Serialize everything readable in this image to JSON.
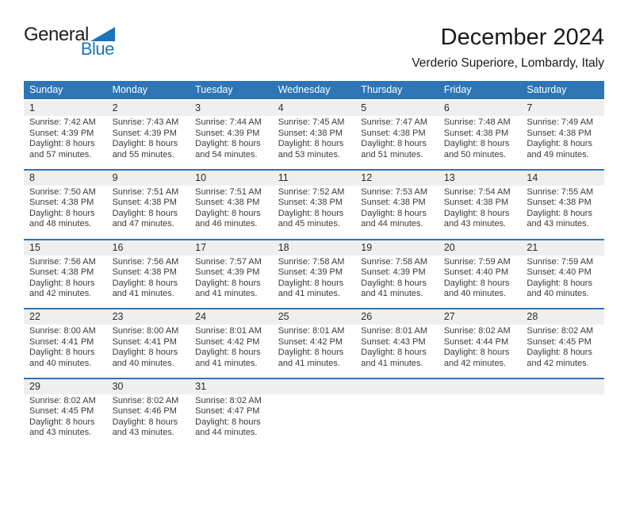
{
  "logo": {
    "general": "General",
    "blue": "Blue"
  },
  "header": {
    "title": "December 2024",
    "subtitle": "Verderio Superiore, Lombardy, Italy"
  },
  "colors": {
    "header_bg": "#2E75B5",
    "week_divider": "#2E75B5",
    "day_number_strip_bg": "#EFEFEF",
    "logo_blue": "#1B75BC",
    "header_text": "#FFFFFF"
  },
  "calendar": {
    "weekdays": [
      "Sunday",
      "Monday",
      "Tuesday",
      "Wednesday",
      "Thursday",
      "Friday",
      "Saturday"
    ],
    "weeks": [
      [
        {
          "day": "1",
          "lines": [
            "Sunrise: 7:42 AM",
            "Sunset: 4:39 PM",
            "Daylight: 8 hours",
            "and 57 minutes."
          ]
        },
        {
          "day": "2",
          "lines": [
            "Sunrise: 7:43 AM",
            "Sunset: 4:39 PM",
            "Daylight: 8 hours",
            "and 55 minutes."
          ]
        },
        {
          "day": "3",
          "lines": [
            "Sunrise: 7:44 AM",
            "Sunset: 4:39 PM",
            "Daylight: 8 hours",
            "and 54 minutes."
          ]
        },
        {
          "day": "4",
          "lines": [
            "Sunrise: 7:45 AM",
            "Sunset: 4:38 PM",
            "Daylight: 8 hours",
            "and 53 minutes."
          ]
        },
        {
          "day": "5",
          "lines": [
            "Sunrise: 7:47 AM",
            "Sunset: 4:38 PM",
            "Daylight: 8 hours",
            "and 51 minutes."
          ]
        },
        {
          "day": "6",
          "lines": [
            "Sunrise: 7:48 AM",
            "Sunset: 4:38 PM",
            "Daylight: 8 hours",
            "and 50 minutes."
          ]
        },
        {
          "day": "7",
          "lines": [
            "Sunrise: 7:49 AM",
            "Sunset: 4:38 PM",
            "Daylight: 8 hours",
            "and 49 minutes."
          ]
        }
      ],
      [
        {
          "day": "8",
          "lines": [
            "Sunrise: 7:50 AM",
            "Sunset: 4:38 PM",
            "Daylight: 8 hours",
            "and 48 minutes."
          ]
        },
        {
          "day": "9",
          "lines": [
            "Sunrise: 7:51 AM",
            "Sunset: 4:38 PM",
            "Daylight: 8 hours",
            "and 47 minutes."
          ]
        },
        {
          "day": "10",
          "lines": [
            "Sunrise: 7:51 AM",
            "Sunset: 4:38 PM",
            "Daylight: 8 hours",
            "and 46 minutes."
          ]
        },
        {
          "day": "11",
          "lines": [
            "Sunrise: 7:52 AM",
            "Sunset: 4:38 PM",
            "Daylight: 8 hours",
            "and 45 minutes."
          ]
        },
        {
          "day": "12",
          "lines": [
            "Sunrise: 7:53 AM",
            "Sunset: 4:38 PM",
            "Daylight: 8 hours",
            "and 44 minutes."
          ]
        },
        {
          "day": "13",
          "lines": [
            "Sunrise: 7:54 AM",
            "Sunset: 4:38 PM",
            "Daylight: 8 hours",
            "and 43 minutes."
          ]
        },
        {
          "day": "14",
          "lines": [
            "Sunrise: 7:55 AM",
            "Sunset: 4:38 PM",
            "Daylight: 8 hours",
            "and 43 minutes."
          ]
        }
      ],
      [
        {
          "day": "15",
          "lines": [
            "Sunrise: 7:56 AM",
            "Sunset: 4:38 PM",
            "Daylight: 8 hours",
            "and 42 minutes."
          ]
        },
        {
          "day": "16",
          "lines": [
            "Sunrise: 7:56 AM",
            "Sunset: 4:38 PM",
            "Daylight: 8 hours",
            "and 41 minutes."
          ]
        },
        {
          "day": "17",
          "lines": [
            "Sunrise: 7:57 AM",
            "Sunset: 4:39 PM",
            "Daylight: 8 hours",
            "and 41 minutes."
          ]
        },
        {
          "day": "18",
          "lines": [
            "Sunrise: 7:58 AM",
            "Sunset: 4:39 PM",
            "Daylight: 8 hours",
            "and 41 minutes."
          ]
        },
        {
          "day": "19",
          "lines": [
            "Sunrise: 7:58 AM",
            "Sunset: 4:39 PM",
            "Daylight: 8 hours",
            "and 41 minutes."
          ]
        },
        {
          "day": "20",
          "lines": [
            "Sunrise: 7:59 AM",
            "Sunset: 4:40 PM",
            "Daylight: 8 hours",
            "and 40 minutes."
          ]
        },
        {
          "day": "21",
          "lines": [
            "Sunrise: 7:59 AM",
            "Sunset: 4:40 PM",
            "Daylight: 8 hours",
            "and 40 minutes."
          ]
        }
      ],
      [
        {
          "day": "22",
          "lines": [
            "Sunrise: 8:00 AM",
            "Sunset: 4:41 PM",
            "Daylight: 8 hours",
            "and 40 minutes."
          ]
        },
        {
          "day": "23",
          "lines": [
            "Sunrise: 8:00 AM",
            "Sunset: 4:41 PM",
            "Daylight: 8 hours",
            "and 40 minutes."
          ]
        },
        {
          "day": "24",
          "lines": [
            "Sunrise: 8:01 AM",
            "Sunset: 4:42 PM",
            "Daylight: 8 hours",
            "and 41 minutes."
          ]
        },
        {
          "day": "25",
          "lines": [
            "Sunrise: 8:01 AM",
            "Sunset: 4:42 PM",
            "Daylight: 8 hours",
            "and 41 minutes."
          ]
        },
        {
          "day": "26",
          "lines": [
            "Sunrise: 8:01 AM",
            "Sunset: 4:43 PM",
            "Daylight: 8 hours",
            "and 41 minutes."
          ]
        },
        {
          "day": "27",
          "lines": [
            "Sunrise: 8:02 AM",
            "Sunset: 4:44 PM",
            "Daylight: 8 hours",
            "and 42 minutes."
          ]
        },
        {
          "day": "28",
          "lines": [
            "Sunrise: 8:02 AM",
            "Sunset: 4:45 PM",
            "Daylight: 8 hours",
            "and 42 minutes."
          ]
        }
      ],
      [
        {
          "day": "29",
          "lines": [
            "Sunrise: 8:02 AM",
            "Sunset: 4:45 PM",
            "Daylight: 8 hours",
            "and 43 minutes."
          ]
        },
        {
          "day": "30",
          "lines": [
            "Sunrise: 8:02 AM",
            "Sunset: 4:46 PM",
            "Daylight: 8 hours",
            "and 43 minutes."
          ]
        },
        {
          "day": "31",
          "lines": [
            "Sunrise: 8:02 AM",
            "Sunset: 4:47 PM",
            "Daylight: 8 hours",
            "and 44 minutes."
          ]
        },
        null,
        null,
        null,
        null
      ]
    ]
  }
}
